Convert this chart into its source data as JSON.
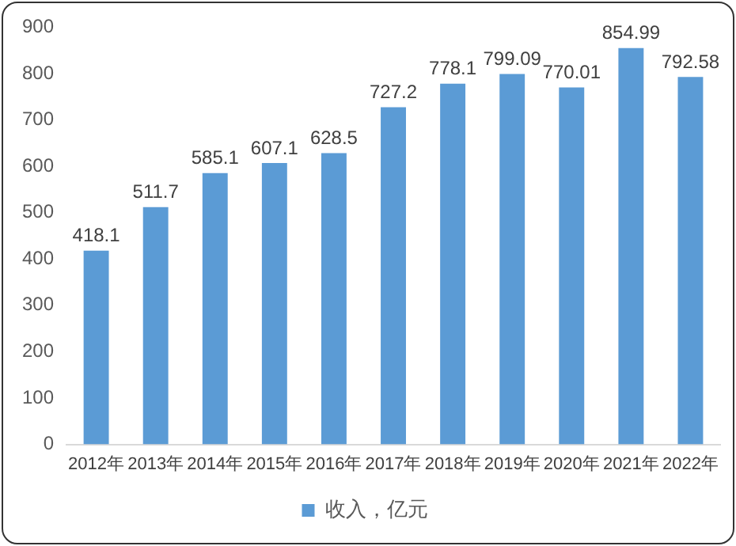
{
  "chart_data": {
    "type": "bar",
    "categories": [
      "2012年",
      "2013年",
      "2014年",
      "2015年",
      "2016年",
      "2017年",
      "2018年",
      "2019年",
      "2020年",
      "2021年",
      "2022年"
    ],
    "series": [
      {
        "name": "收入，亿元",
        "color": "#5b9bd5",
        "values": [
          418.1,
          511.7,
          585.1,
          607.1,
          628.5,
          727.2,
          778.1,
          799.09,
          770.01,
          854.99,
          792.58
        ]
      }
    ],
    "ylim": [
      0,
      900
    ],
    "yticks": [
      0,
      100,
      200,
      300,
      400,
      500,
      600,
      700,
      800,
      900
    ],
    "grid": false,
    "legend": "bottom",
    "data_labels": true
  }
}
